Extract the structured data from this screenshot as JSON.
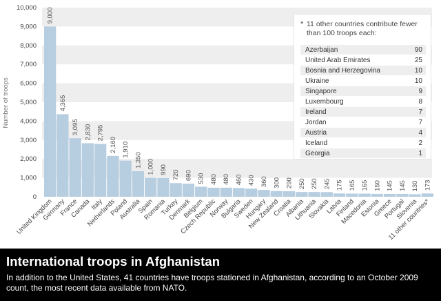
{
  "chart_data": {
    "type": "bar",
    "title": "International troops in Afghanistan",
    "ylabel": "Number of troops",
    "xlabel": "",
    "ylim": [
      0,
      10000
    ],
    "yticks": [
      "0",
      "1,000",
      "2,000",
      "3,000",
      "4,000",
      "5,000",
      "6,000",
      "7,000",
      "8,000",
      "9,000",
      "10,000"
    ],
    "categories": [
      "United Kingdom",
      "Germany",
      "France",
      "Canada",
      "Italy",
      "Netherlands",
      "Poland",
      "Australia",
      "Spain",
      "Romania",
      "Turkey",
      "Denmark",
      "Belgium",
      "Czech Republic",
      "Norway",
      "Bulgaria",
      "Sweden",
      "Hungary",
      "New Zealand",
      "Croatia",
      "Albania",
      "Lithuania",
      "Slovakia",
      "Latvia",
      "Finland",
      "Macedonia",
      "Estonia",
      "Greece",
      "Portugal",
      "Slovenia",
      "11 other countries*"
    ],
    "values": [
      9000,
      4365,
      3095,
      2830,
      2795,
      2160,
      1910,
      1350,
      1000,
      990,
      720,
      690,
      530,
      480,
      480,
      460,
      430,
      360,
      300,
      290,
      250,
      250,
      245,
      175,
      165,
      165,
      150,
      145,
      145,
      130,
      173
    ],
    "value_labels": [
      "9,000",
      "4,365",
      "3,095",
      "2,830",
      "2,795",
      "2,160",
      "1,910",
      "1,350",
      "1,000",
      "990",
      "720",
      "690",
      "530",
      "480",
      "480",
      "460",
      "430",
      "360",
      "300",
      "290",
      "250",
      "250",
      "245",
      "175",
      "165",
      "165",
      "150",
      "145",
      "145",
      "130",
      "173"
    ],
    "grid": "horizontal bands",
    "colors": {
      "bar": "#b7cde0",
      "band": "#eeeeee",
      "axis_text": "#444444",
      "value_text": "#555555"
    }
  },
  "inset": {
    "asterisk": "*",
    "heading": "11 other countries contribute fewer than 100 troops each:",
    "rows": [
      {
        "country": "Azerbaijan",
        "troops": "90"
      },
      {
        "country": "United Arab Emirates",
        "troops": "25"
      },
      {
        "country": "Bosnia and Herzegovina",
        "troops": "10"
      },
      {
        "country": "Ukraine",
        "troops": "10"
      },
      {
        "country": "Singapore",
        "troops": "9"
      },
      {
        "country": "Luxembourg",
        "troops": "8"
      },
      {
        "country": "Ireland",
        "troops": "7"
      },
      {
        "country": "Jordan",
        "troops": "7"
      },
      {
        "country": "Austria",
        "troops": "4"
      },
      {
        "country": "Iceland",
        "troops": "2"
      },
      {
        "country": "Georgia",
        "troops": "1"
      }
    ]
  },
  "caption": {
    "title": "International troops in Afghanistan",
    "text": "In addition to the United States, 41 countries have troops stationed in Afghanistan, according to an October 2009 count, the most recent data available from NATO."
  }
}
